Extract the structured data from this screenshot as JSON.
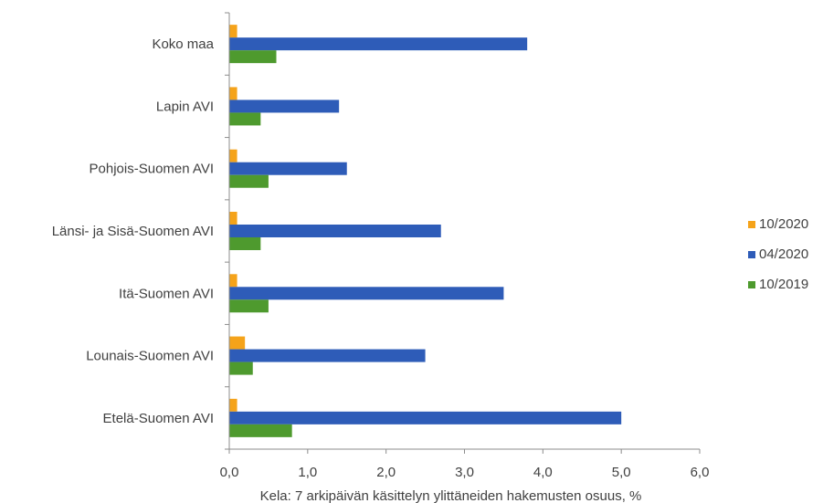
{
  "chart_data": {
    "type": "bar",
    "orientation": "horizontal",
    "categories": [
      "Koko maa",
      "Lapin AVI",
      "Pohjois-Suomen AVI",
      "Länsi- ja Sisä-Suomen AVI",
      "Itä-Suomen AVI",
      "Lounais-Suomen AVI",
      "Etelä-Suomen AVI"
    ],
    "series": [
      {
        "name": "10/2020",
        "color": "#F5A31A",
        "values": [
          0.1,
          0.1,
          0.1,
          0.1,
          0.1,
          0.2,
          0.1
        ]
      },
      {
        "name": "04/2020",
        "color": "#2E5CB8",
        "values": [
          3.8,
          1.4,
          1.5,
          2.7,
          3.5,
          2.5,
          5.0
        ]
      },
      {
        "name": "10/2019",
        "color": "#4E9A2E",
        "values": [
          0.6,
          0.4,
          0.5,
          0.4,
          0.5,
          0.3,
          0.8
        ]
      }
    ],
    "xlabel": "Kela:  7 arkipäivän käsittelyn ylittäneiden  hakemusten osuus, %",
    "xlim": [
      0,
      6
    ],
    "xticks": [
      "0,0",
      "1,0",
      "2,0",
      "3,0",
      "4,0",
      "5,0",
      "6,0"
    ],
    "legend_position": "right",
    "grid": false
  }
}
